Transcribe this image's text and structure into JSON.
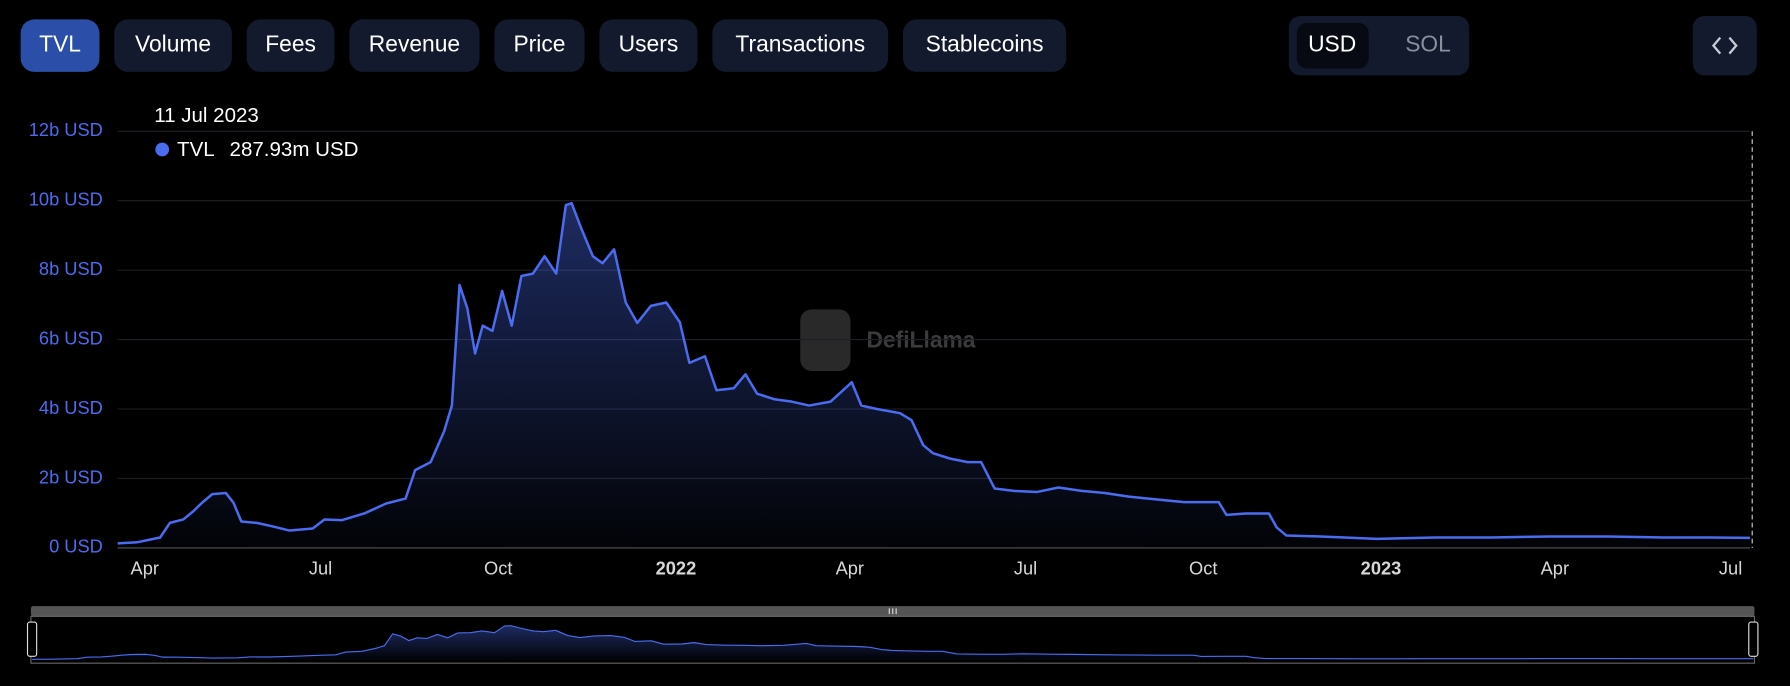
{
  "tabs": [
    "TVL",
    "Volume",
    "Fees",
    "Revenue",
    "Price",
    "Users",
    "Transactions",
    "Stablecoins"
  ],
  "currency": [
    "USD",
    "SOL"
  ],
  "watermark": "DefiLlama",
  "tooltip": {
    "date": "11 Jul 2023",
    "value": "287.93m USD"
  },
  "chart_data": {
    "type": "area",
    "x": [
      "2021-03-18",
      "2021-03-28",
      "2021-04-09",
      "2021-04-14",
      "2021-04-21",
      "2021-04-26",
      "2021-05-01",
      "2021-05-06",
      "2021-05-13",
      "2021-05-17",
      "2021-05-21",
      "2021-05-29",
      "2021-06-06",
      "2021-06-15",
      "2021-06-27",
      "2021-07-03",
      "2021-07-12",
      "2021-07-24",
      "2021-08-04",
      "2021-08-14",
      "2021-08-19",
      "2021-08-27",
      "2021-09-03",
      "2021-09-07",
      "2021-09-11",
      "2021-09-15",
      "2021-09-19",
      "2021-09-23",
      "2021-09-28",
      "2021-10-03",
      "2021-10-08",
      "2021-10-13",
      "2021-10-19",
      "2021-10-25",
      "2021-10-31",
      "2021-11-05",
      "2021-11-08",
      "2021-11-13",
      "2021-11-19",
      "2021-11-24",
      "2021-11-30",
      "2021-12-06",
      "2021-12-12",
      "2021-12-19",
      "2021-12-27",
      "2022-01-03",
      "2022-01-08",
      "2022-01-16",
      "2022-01-22",
      "2022-01-31",
      "2022-02-06",
      "2022-02-12",
      "2022-02-21",
      "2022-03-02",
      "2022-03-11",
      "2022-03-22",
      "2022-04-02",
      "2022-04-07",
      "2022-04-15",
      "2022-04-27",
      "2022-05-03",
      "2022-05-09",
      "2022-05-14",
      "2022-05-23",
      "2022-06-01",
      "2022-06-08",
      "2022-06-15",
      "2022-06-25",
      "2022-07-07",
      "2022-07-18",
      "2022-07-30",
      "2022-08-11",
      "2022-08-23",
      "2022-09-04",
      "2022-09-21",
      "2022-10-09",
      "2022-10-13",
      "2022-10-23",
      "2022-11-04",
      "2022-11-08",
      "2022-11-13",
      "2022-12-01",
      "2022-12-30",
      "2023-01-29",
      "2023-02-27",
      "2023-03-29",
      "2023-04-28",
      "2023-05-27",
      "2023-06-20",
      "2023-07-11"
    ],
    "series": [
      {
        "name": "TVL",
        "color": "#4a6cf0",
        "values": [
          130000000,
          160000000,
          300000000,
          720000000,
          820000000,
          1050000000,
          1320000000,
          1550000000,
          1580000000,
          1300000000,
          760000000,
          720000000,
          620000000,
          500000000,
          560000000,
          820000000,
          800000000,
          1000000000,
          1280000000,
          1420000000,
          2240000000,
          2470000000,
          3360000000,
          4100000000,
          7570000000,
          6900000000,
          5600000000,
          6400000000,
          6250000000,
          7400000000,
          6400000000,
          7830000000,
          7900000000,
          8400000000,
          7900000000,
          9870000000,
          9930000000,
          9200000000,
          8400000000,
          8200000000,
          8600000000,
          7070000000,
          6480000000,
          6970000000,
          7070000000,
          6500000000,
          5330000000,
          5520000000,
          4540000000,
          4600000000,
          5000000000,
          4440000000,
          4280000000,
          4210000000,
          4100000000,
          4210000000,
          4770000000,
          4100000000,
          4000000000,
          3880000000,
          3680000000,
          2960000000,
          2730000000,
          2570000000,
          2470000000,
          2470000000,
          1710000000,
          1640000000,
          1610000000,
          1740000000,
          1640000000,
          1580000000,
          1480000000,
          1410000000,
          1320000000,
          1320000000,
          950000000,
          990000000,
          990000000,
          590000000,
          360000000,
          330000000,
          260000000,
          300000000,
          300000000,
          330000000,
          330000000,
          300000000,
          300000000,
          287930000
        ]
      }
    ],
    "xlim": [
      "2021-03-18",
      "2023-07-11"
    ],
    "xticks": [
      {
        "value": "2021-04-01",
        "label": "Apr"
      },
      {
        "value": "2021-07-01",
        "label": "Jul"
      },
      {
        "value": "2021-10-01",
        "label": "Oct"
      },
      {
        "value": "2022-01-01",
        "label": "2022"
      },
      {
        "value": "2022-04-01",
        "label": "Apr"
      },
      {
        "value": "2022-07-01",
        "label": "Jul"
      },
      {
        "value": "2022-10-01",
        "label": "Oct"
      },
      {
        "value": "2023-01-01",
        "label": "2023"
      },
      {
        "value": "2023-04-01",
        "label": "Apr"
      },
      {
        "value": "2023-07-01",
        "label": "Jul"
      }
    ],
    "ylim": [
      0,
      12000000000
    ],
    "yticks": [
      {
        "value": 0,
        "label": "0 USD"
      },
      {
        "value": 2000000000,
        "label": "2b USD"
      },
      {
        "value": 4000000000,
        "label": "4b USD"
      },
      {
        "value": 6000000000,
        "label": "6b USD"
      },
      {
        "value": 8000000000,
        "label": "8b USD"
      },
      {
        "value": 10000000000,
        "label": "10b USD"
      },
      {
        "value": 12000000000,
        "label": "12b USD"
      }
    ],
    "grid": true
  }
}
